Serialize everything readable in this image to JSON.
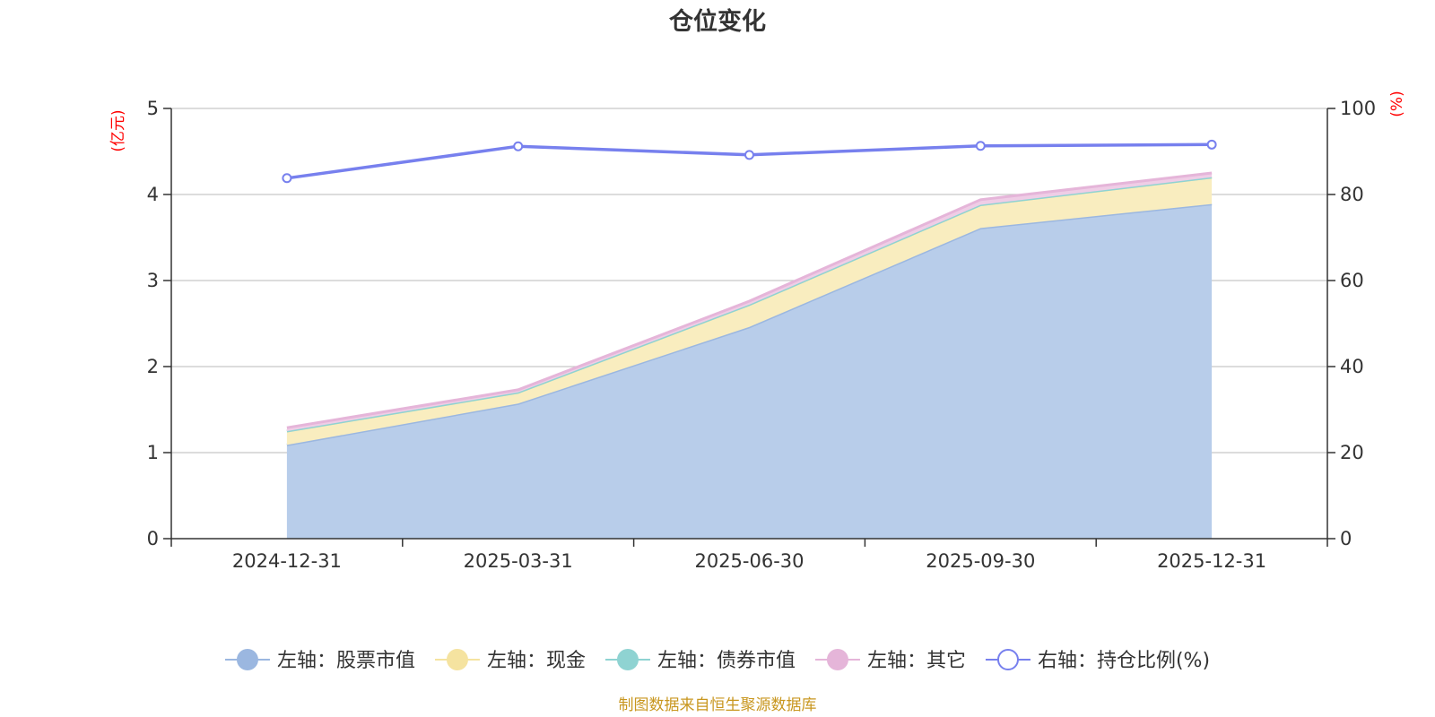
{
  "chart_data": {
    "type": "area",
    "title": "仓位变化",
    "categories": [
      "2024-12-31",
      "2025-03-31",
      "2025-06-30",
      "2025-09-30",
      "2025-12-31"
    ],
    "left_axis": {
      "unit": "(亿元)",
      "ylim": [
        0,
        5
      ],
      "ticks": [
        "0",
        "1",
        "2",
        "3",
        "4",
        "5"
      ]
    },
    "right_axis": {
      "unit": "(%)",
      "ylim": [
        0,
        100
      ],
      "ticks": [
        "0",
        "20",
        "40",
        "60",
        "80",
        "100"
      ]
    },
    "stacked": true,
    "grid": true,
    "legend_position": "bottom",
    "series": [
      {
        "name": "左轴：股票市值",
        "axis": "left",
        "type": "area",
        "color": "#9bb7e0",
        "fill": "#b8cdea",
        "values": [
          1.09,
          1.57,
          2.46,
          3.61,
          3.89
        ]
      },
      {
        "name": "左轴：现金",
        "axis": "left",
        "type": "area",
        "color": "#f5e3a0",
        "fill": "#f9edbf",
        "values": [
          0.16,
          0.13,
          0.26,
          0.27,
          0.31
        ]
      },
      {
        "name": "左轴：债券市值",
        "axis": "left",
        "type": "area",
        "color": "#8fd3d2",
        "fill": "#a9dcdb",
        "values": [
          0,
          0,
          0,
          0,
          0
        ]
      },
      {
        "name": "左轴：其它",
        "axis": "left",
        "type": "area",
        "color": "#e5b5d9",
        "fill": "#efcde6",
        "values": [
          0.04,
          0.03,
          0.04,
          0.06,
          0.05
        ]
      },
      {
        "name": "右轴：持仓比例(%)",
        "axis": "right",
        "type": "line",
        "color": "#7780ee",
        "values": [
          83.8,
          91.2,
          89.2,
          91.3,
          91.6
        ]
      }
    ],
    "source": "制图数据来自恒生聚源数据库"
  }
}
